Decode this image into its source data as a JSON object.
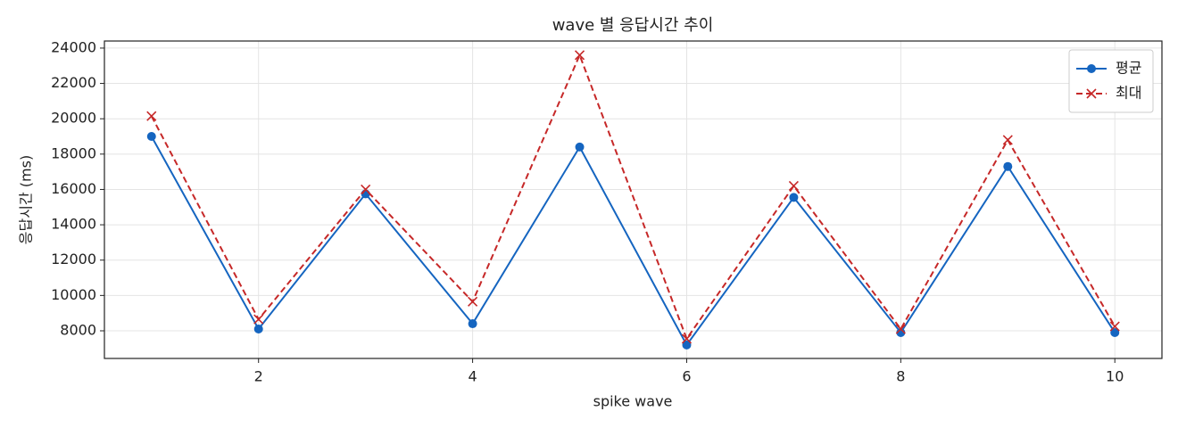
{
  "chart_data": {
    "type": "line",
    "title": "wave 별 응답시간 추이",
    "x_label": "spike wave",
    "y_label": "응답시간 (ms)",
    "x": [
      1,
      2,
      3,
      4,
      5,
      6,
      7,
      8,
      9,
      10
    ],
    "series": [
      {
        "name": "평균",
        "color": "#1565c0",
        "marker": "o",
        "linestyle": "solid",
        "values": [
          19000,
          8100,
          15750,
          8400,
          18400,
          7200,
          15550,
          7900,
          17300,
          7900
        ]
      },
      {
        "name": "최대",
        "color": "#c62828",
        "marker": "x",
        "linestyle": "dashed",
        "values": [
          20150,
          8650,
          16000,
          9650,
          23600,
          7550,
          16200,
          8100,
          18800,
          8250
        ]
      }
    ],
    "xlim": [
      0.56,
      10.44
    ],
    "xticks": [
      2,
      4,
      6,
      8,
      10
    ],
    "ylim": [
      6435,
      24400
    ],
    "yticks": [
      8000,
      10000,
      12000,
      14000,
      16000,
      18000,
      20000,
      22000,
      24000
    ],
    "grid": true,
    "legend": "upper right"
  }
}
